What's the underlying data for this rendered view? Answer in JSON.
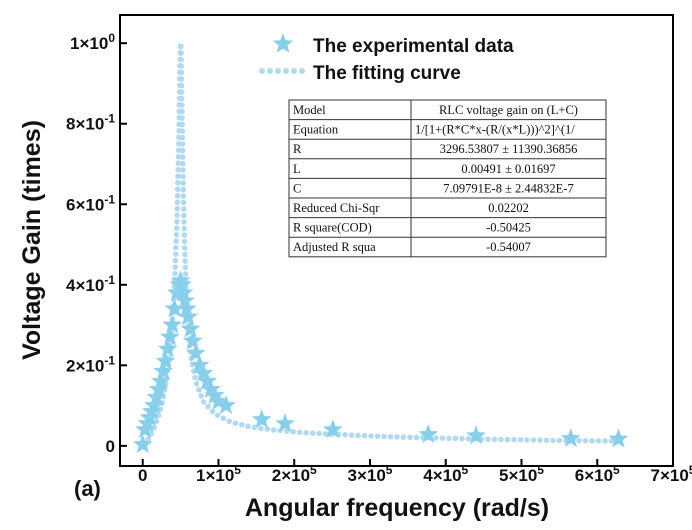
{
  "chart_data": {
    "type": "scatter",
    "panel_label": "(a)",
    "xlabel": "Angular frequency (rad/s)",
    "ylabel": "Voltage Gain (times)",
    "xlim": [
      -30000,
      700000
    ],
    "ylim": [
      -0.05,
      1.07
    ],
    "x_ticks": [
      0,
      100000,
      200000,
      300000,
      400000,
      500000,
      600000,
      700000
    ],
    "x_tick_labels": [
      {
        "base": "0",
        "exp": ""
      },
      {
        "base": "1×10",
        "exp": "5"
      },
      {
        "base": "2×10",
        "exp": "5"
      },
      {
        "base": "3×10",
        "exp": "5"
      },
      {
        "base": "4×10",
        "exp": "5"
      },
      {
        "base": "5×10",
        "exp": "5"
      },
      {
        "base": "6×10",
        "exp": "5"
      },
      {
        "base": "7×10",
        "exp": "5"
      }
    ],
    "y_ticks": [
      0,
      0.2,
      0.4,
      0.6,
      0.8,
      1.0
    ],
    "y_tick_labels": [
      {
        "base": "0",
        "exp": ""
      },
      {
        "base": "2×10",
        "exp": "-1"
      },
      {
        "base": "4×10",
        "exp": "-1"
      },
      {
        "base": "6×10",
        "exp": "-1"
      },
      {
        "base": "8×10",
        "exp": "-1"
      },
      {
        "base": "1×10",
        "exp": "0"
      }
    ],
    "legend_position": "top",
    "series": [
      {
        "name": "The experimental data",
        "marker": "star",
        "color": "#87ceeb",
        "x": [
          0,
          3000,
          6000,
          9000,
          12000,
          15000,
          18000,
          21000,
          24000,
          27000,
          30000,
          33000,
          36000,
          39000,
          42000,
          45000,
          48000,
          50000,
          52000,
          54000,
          56000,
          58000,
          60000,
          63000,
          66000,
          70000,
          75000,
          80000,
          85000,
          90000,
          95000,
          100000,
          110000,
          157000,
          188000,
          251000,
          377000,
          440000,
          565000,
          628000
        ],
        "y": [
          0.003,
          0.04,
          0.055,
          0.07,
          0.085,
          0.1,
          0.12,
          0.14,
          0.16,
          0.185,
          0.21,
          0.24,
          0.27,
          0.3,
          0.34,
          0.38,
          0.4,
          0.41,
          0.4,
          0.38,
          0.36,
          0.34,
          0.32,
          0.29,
          0.26,
          0.23,
          0.2,
          0.18,
          0.16,
          0.14,
          0.125,
          0.11,
          0.1,
          0.065,
          0.055,
          0.04,
          0.028,
          0.025,
          0.018,
          0.017
        ]
      },
      {
        "name": "The fitting curve",
        "marker": "dotted-line",
        "color": "#b3d9ef",
        "x": [
          2000,
          5000,
          10000,
          15000,
          20000,
          25000,
          30000,
          35000,
          38000,
          41000,
          43000,
          45000,
          46500,
          47500,
          48200,
          48800,
          49200,
          49600,
          50000,
          50400,
          50800,
          51400,
          52200,
          53300,
          55000,
          57000,
          60000,
          64000,
          70000,
          80000,
          95000,
          115000,
          140000,
          170000,
          210000,
          260000,
          320000,
          380000,
          440000,
          500000,
          560000,
          620000
        ],
        "y": [
          0.004,
          0.01,
          0.025,
          0.045,
          0.07,
          0.1,
          0.15,
          0.22,
          0.28,
          0.36,
          0.45,
          0.55,
          0.66,
          0.74,
          0.82,
          0.9,
          0.95,
          0.985,
          1.0,
          0.985,
          0.95,
          0.88,
          0.78,
          0.66,
          0.52,
          0.4,
          0.3,
          0.22,
          0.16,
          0.11,
          0.08,
          0.06,
          0.048,
          0.04,
          0.033,
          0.028,
          0.023,
          0.02,
          0.017,
          0.015,
          0.013,
          0.012
        ]
      }
    ],
    "fit_table": {
      "header": [
        "Model",
        "RLC voltage gain on (L+C)"
      ],
      "rows": [
        [
          "Equation",
          "1/[1+(R*C*x-(R/(x*L)))^2]^(1/"
        ],
        [
          "R",
          "3296.53807 ± 11390.36856"
        ],
        [
          "L",
          "0.00491 ± 0.01697"
        ],
        [
          "C",
          "7.09791E-8 ± 2.44832E-7"
        ],
        [
          "Reduced Chi-Sqr",
          "0.02202"
        ],
        [
          "R square(COD)",
          "-0.50425"
        ],
        [
          "Adjusted R squa",
          "-0.54007"
        ]
      ]
    }
  }
}
